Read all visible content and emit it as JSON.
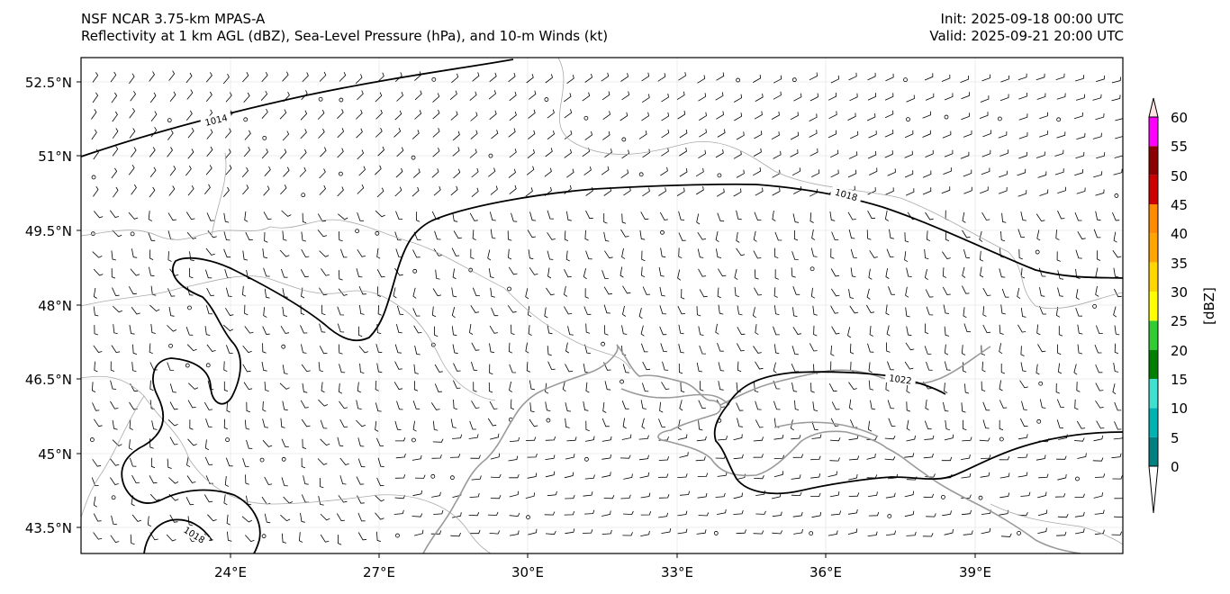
{
  "header": {
    "model": "NSF NCAR 3.75-km MPAS-A",
    "product": "Reflectivity at 1 km AGL (dBZ), Sea-Level Pressure (hPa), and 10-m Winds (kt)",
    "init": "Init: 2025-09-18 00:00 UTC",
    "valid": "Valid: 2025-09-21 20:00 UTC"
  },
  "map": {
    "lat_ticks": [
      "52.5°N",
      "51°N",
      "49.5°N",
      "48°N",
      "46.5°N",
      "45°N",
      "43.5°N"
    ],
    "lon_ticks": [
      "24°E",
      "27°E",
      "30°E",
      "33°E",
      "36°E",
      "39°E"
    ],
    "isobar_labels": [
      "1014",
      "1018",
      "1022",
      "1018"
    ]
  },
  "colorbar": {
    "label": "[dBZ]",
    "ticks": [
      "0",
      "5",
      "10",
      "15",
      "20",
      "25",
      "30",
      "35",
      "40",
      "45",
      "50",
      "55",
      "60"
    ],
    "colors": [
      "#008080",
      "#00b3b3",
      "#40e0d0",
      "#008000",
      "#32cd32",
      "#ffff00",
      "#ffd700",
      "#ffa500",
      "#ff8c00",
      "#cc0000",
      "#8b0000",
      "#ff00ff",
      "#ffe4e1"
    ]
  }
}
